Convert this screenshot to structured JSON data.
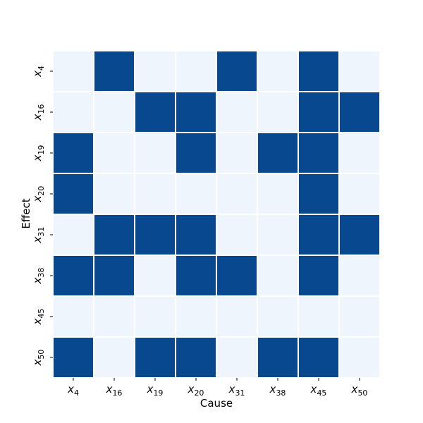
{
  "chart_data": {
    "type": "heatmap",
    "title": "",
    "xlabel": "Cause",
    "ylabel": "Effect",
    "x_categories": [
      "x_4",
      "x_16",
      "x_19",
      "x_20",
      "x_31",
      "x_38",
      "x_45",
      "x_50"
    ],
    "y_categories": [
      "x_4",
      "x_16",
      "x_19",
      "x_20",
      "x_31",
      "x_38",
      "x_45",
      "x_50"
    ],
    "values": [
      [
        0,
        1,
        0,
        0,
        1,
        0,
        1,
        0
      ],
      [
        0,
        0,
        1,
        1,
        0,
        0,
        1,
        1
      ],
      [
        1,
        0,
        0,
        1,
        0,
        1,
        1,
        0
      ],
      [
        1,
        0,
        0,
        0,
        0,
        0,
        1,
        0
      ],
      [
        0,
        1,
        1,
        1,
        0,
        0,
        1,
        1
      ],
      [
        1,
        1,
        0,
        1,
        1,
        0,
        1,
        0
      ],
      [
        0,
        0,
        0,
        0,
        0,
        0,
        0,
        0
      ],
      [
        1,
        0,
        1,
        1,
        0,
        1,
        1,
        0
      ]
    ],
    "colors": {
      "low": "#eef5fc",
      "high": "#08488e",
      "grid": "#ffffff"
    },
    "colorbar": false
  }
}
